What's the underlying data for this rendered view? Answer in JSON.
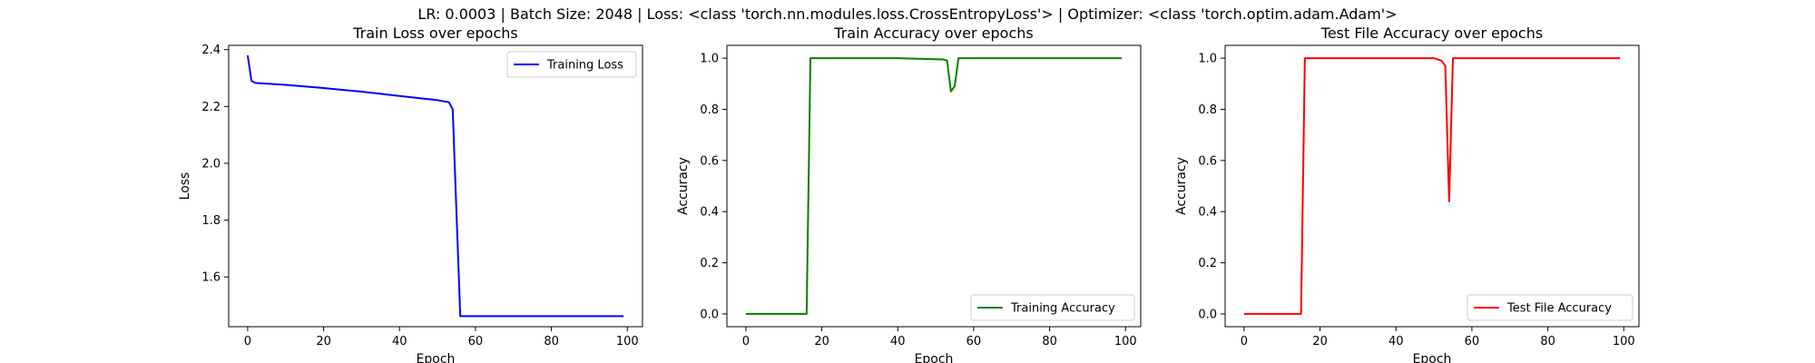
{
  "suptitle": "LR: 0.0003 | Batch Size: 2048 | Loss: <class 'torch.nn.modules.loss.CrossEntropyLoss'> | Optimizer: <class 'torch.optim.adam.Adam'>",
  "chart_data": [
    {
      "type": "line",
      "title": "Train Loss over epochs",
      "xlabel": "Epoch",
      "ylabel": "Loss",
      "xlim": [
        -5,
        104
      ],
      "ylim": [
        1.425,
        2.415
      ],
      "xticks": [
        0,
        20,
        40,
        60,
        80,
        100
      ],
      "yticks": [
        1.6,
        1.8,
        2.0,
        2.2,
        2.4
      ],
      "ytick_labels": [
        "1.6",
        "1.8",
        "2.0",
        "2.2",
        "2.4"
      ],
      "grid": false,
      "legend": "upper right",
      "series": [
        {
          "name": "Training Loss",
          "color": "#0000ff",
          "x": [
            0,
            1,
            2,
            10,
            20,
            30,
            40,
            50,
            53,
            54,
            56,
            60,
            70,
            80,
            90,
            99
          ],
          "y": [
            2.38,
            2.29,
            2.283,
            2.276,
            2.265,
            2.252,
            2.237,
            2.222,
            2.215,
            2.19,
            1.462,
            1.462,
            1.462,
            1.462,
            1.462,
            1.462
          ]
        }
      ]
    },
    {
      "type": "line",
      "title": "Train Accuracy over epochs",
      "xlabel": "Epoch",
      "ylabel": "Accuracy",
      "xlim": [
        -5,
        104
      ],
      "ylim": [
        -0.05,
        1.05
      ],
      "xticks": [
        0,
        20,
        40,
        60,
        80,
        100
      ],
      "yticks": [
        0.0,
        0.2,
        0.4,
        0.6,
        0.8,
        1.0
      ],
      "ytick_labels": [
        "0.0",
        "0.2",
        "0.4",
        "0.6",
        "0.8",
        "1.0"
      ],
      "grid": false,
      "legend": "lower right",
      "series": [
        {
          "name": "Training Accuracy",
          "color": "#008000",
          "x": [
            0,
            16,
            17,
            30,
            40,
            52,
            53,
            54,
            55,
            56,
            60,
            80,
            99
          ],
          "y": [
            0,
            0,
            1.0,
            1.0,
            1.0,
            0.995,
            0.99,
            0.87,
            0.89,
            1.0,
            1.0,
            1.0,
            1.0
          ]
        }
      ]
    },
    {
      "type": "line",
      "title": "Test File Accuracy over epochs",
      "xlabel": "Epoch",
      "ylabel": "Accuracy",
      "xlim": [
        -5,
        104
      ],
      "ylim": [
        -0.05,
        1.05
      ],
      "xticks": [
        0,
        20,
        40,
        60,
        80,
        100
      ],
      "yticks": [
        0.0,
        0.2,
        0.4,
        0.6,
        0.8,
        1.0
      ],
      "ytick_labels": [
        "0.0",
        "0.2",
        "0.4",
        "0.6",
        "0.8",
        "1.0"
      ],
      "grid": false,
      "legend": "lower right",
      "series": [
        {
          "name": "Test File Accuracy",
          "color": "#ff0000",
          "x": [
            0,
            15,
            16,
            30,
            40,
            50,
            52,
            53,
            54,
            55,
            60,
            80,
            99
          ],
          "y": [
            0,
            0,
            1.0,
            1.0,
            1.0,
            1.0,
            0.99,
            0.97,
            0.44,
            1.0,
            1.0,
            1.0,
            1.0
          ]
        }
      ]
    }
  ]
}
